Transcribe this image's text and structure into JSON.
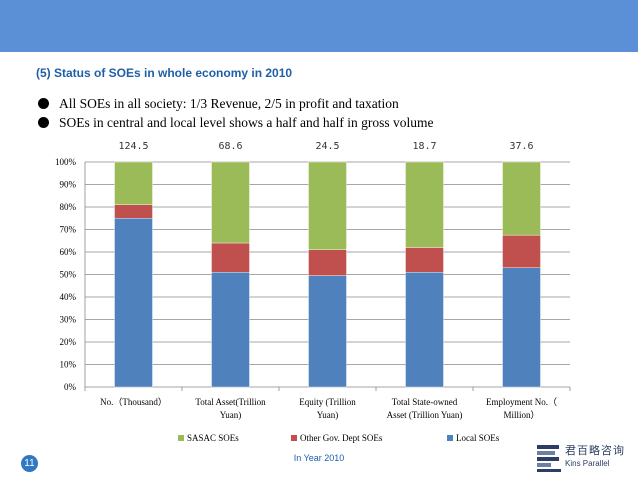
{
  "slide": {
    "title": "(5) Status of SOEs in whole economy in 2010",
    "bullets": [
      "All SOEs in all society: 1/3 Revenue, 2/5 in profit and taxation",
      "SOEs in central and local level shows a half and half in gross volume"
    ],
    "footer": "In Year 2010",
    "page_number": "11",
    "logo": {
      "cn": "君百略咨询",
      "en": "Kins Parallel"
    }
  },
  "colors": {
    "topbar": "#5b8fd6",
    "title": "#1f5fa8",
    "sasac": "#9bbb59",
    "other_gov": "#c0504d",
    "local": "#4f81bd"
  },
  "chart_data": {
    "type": "bar",
    "stacked": "percent",
    "totals": [
      "124.5",
      "68.6",
      "24.5",
      "18.7",
      "37.6"
    ],
    "categories": [
      [
        "No.（Thousand）"
      ],
      [
        "Total Asset(Trillion",
        "Yuan)"
      ],
      [
        "Equity (Trillion",
        "Yuan)"
      ],
      [
        "Total State-owned",
        "Asset (Trillion Yuan)"
      ],
      [
        "Employment No.（",
        "Million）"
      ]
    ],
    "series": [
      {
        "name": "Local SOEs",
        "color": "#4f81bd",
        "values": [
          75,
          51,
          49.5,
          51,
          53
        ]
      },
      {
        "name": "Other Gov. Dept SOEs",
        "color": "#c0504d",
        "values": [
          6,
          13,
          11.5,
          11,
          14.5
        ]
      },
      {
        "name": "SASAC SOEs",
        "color": "#9bbb59",
        "values": [
          19,
          36,
          39,
          38,
          32.5
        ]
      }
    ],
    "legend": [
      "SASAC SOEs",
      "Other Gov. Dept SOEs",
      "Local SOEs"
    ],
    "y_ticks": [
      "0%",
      "10%",
      "20%",
      "30%",
      "40%",
      "50%",
      "60%",
      "70%",
      "80%",
      "90%",
      "100%"
    ],
    "ylim": [
      0,
      100
    ],
    "xlabel": "",
    "ylabel": "",
    "grid": true
  }
}
